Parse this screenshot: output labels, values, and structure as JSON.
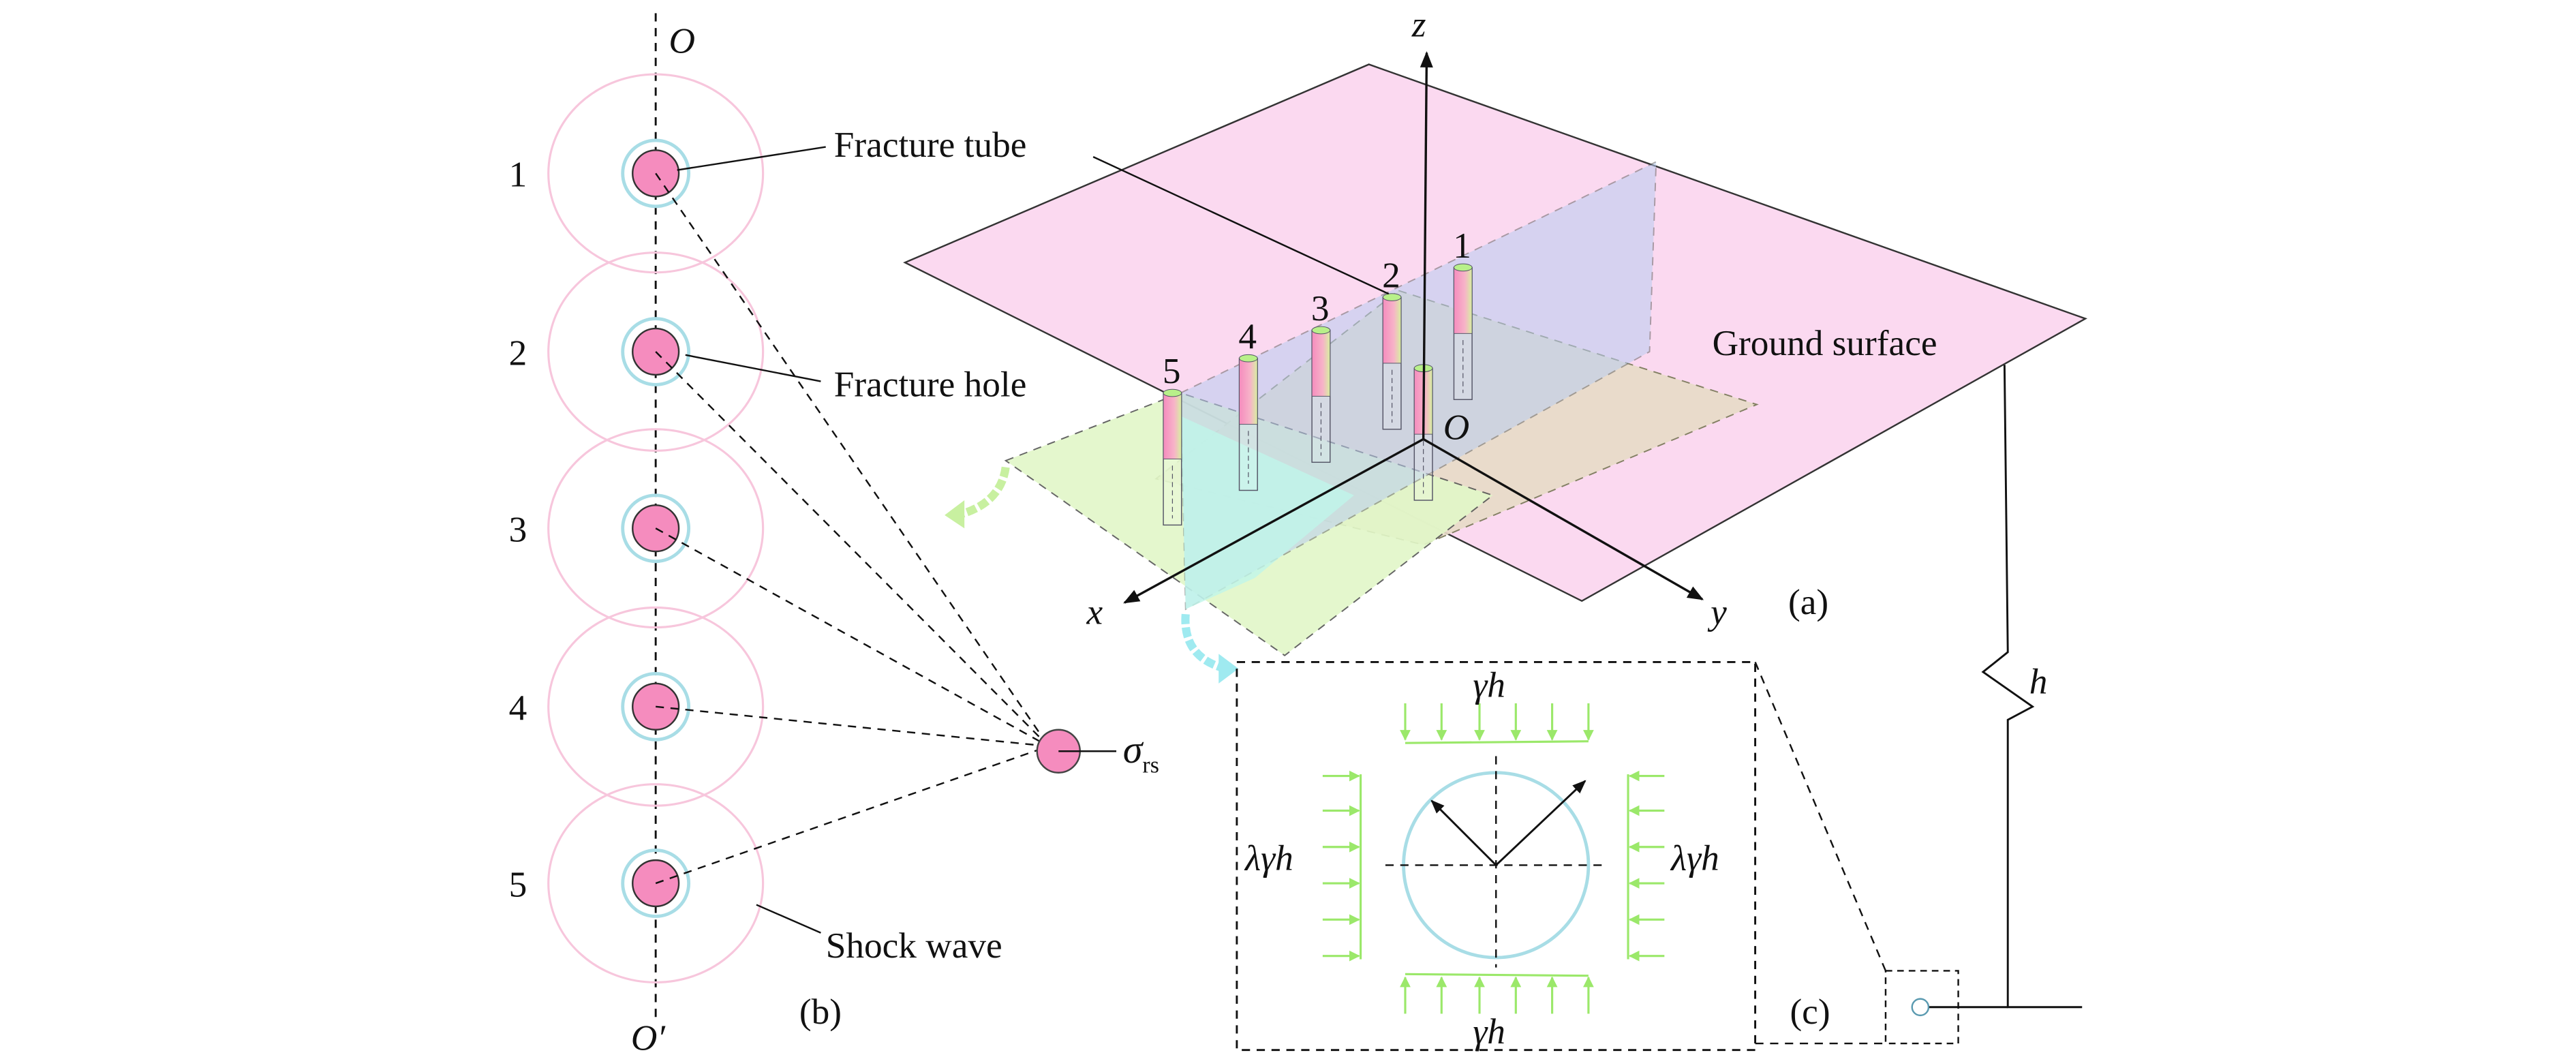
{
  "panel_b": {
    "axis_top": "O",
    "axis_bottom": "O′",
    "hole_numbers": [
      "1",
      "2",
      "3",
      "4",
      "5"
    ],
    "label_tube": "Fracture tube",
    "label_hole": "Fracture hole",
    "label_wave": "Shock wave",
    "stress_symbol": "σ",
    "stress_subscript": "rs",
    "panel_label": "(b)"
  },
  "panel_a": {
    "axis_z": "z",
    "axis_x": "x",
    "axis_y": "y",
    "origin": "O",
    "tube_numbers": [
      "1",
      "2",
      "3",
      "4",
      "5"
    ],
    "ground_label": "Ground surface",
    "depth_label": "h",
    "panel_label": "(a)"
  },
  "panel_c": {
    "top_load": "γh",
    "bottom_load": "γh",
    "left_load": "λγh",
    "right_load": "λγh",
    "panel_label": "(c)"
  },
  "colors": {
    "ground": "#fbd9f0",
    "vertical_plane": "#cfdcf0",
    "horizontal_plane": "#e2f7c8",
    "tan_plane": "#e8dcc8",
    "cyan_plane": "#bff5ea",
    "shock_wave": "#f7c6dc",
    "hole_ring": "#a8dde6",
    "tube_fill": "#f58cbe",
    "load_arrow": "#9be86a"
  }
}
